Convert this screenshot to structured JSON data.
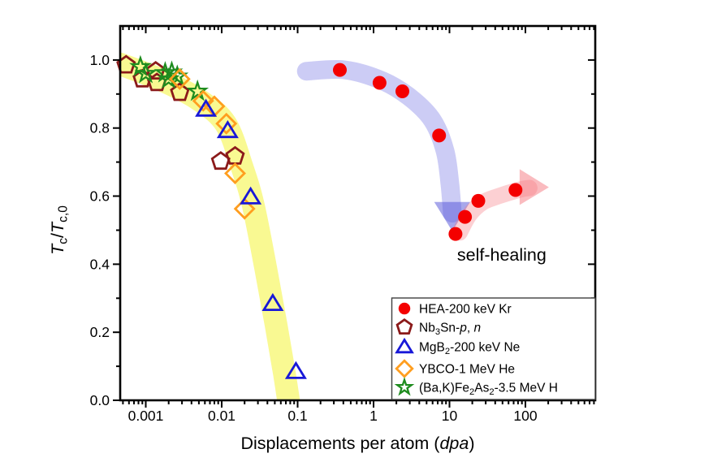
{
  "figure": {
    "background": "#ffffff",
    "annotation": {
      "text": "self-healing",
      "x_dpa": 12.6,
      "y_ratio": 0.41
    }
  },
  "chart_data": {
    "type": "scatter",
    "x_scale": "log",
    "xlim": [
      0.00046,
      832
    ],
    "ylim": [
      0,
      1.1
    ],
    "grid": false,
    "xlabel": "Displacements per atom (dpa)",
    "ylabel": "Tc/Tc,0",
    "xlabel_segments": [
      {
        "t": "Displacements per atom ("
      },
      {
        "t": "dpa",
        "italic": true
      },
      {
        "t": ")"
      }
    ],
    "ylabel_segments": [
      {
        "t": "T",
        "italic": true
      },
      {
        "t": "c",
        "sub": true
      },
      {
        "t": "/"
      },
      {
        "t": "T",
        "italic": true
      },
      {
        "t": "c,0",
        "sub": true
      }
    ],
    "x_ticks": {
      "values": [
        0.001,
        0.01,
        0.1,
        1,
        10,
        100
      ],
      "labels": [
        "0.001",
        "0.01",
        "0.1",
        "1",
        "10",
        "100"
      ]
    },
    "y_ticks": {
      "values": [
        0.0,
        0.2,
        0.4,
        0.6,
        0.8,
        1.0
      ],
      "labels": [
        "0.0",
        "0.2",
        "0.4",
        "0.6",
        "0.8",
        "1.0"
      ]
    },
    "y_minor_step": 0.1,
    "legend_position": "bottom-right",
    "series": [
      {
        "name": "HEA-200 keV Kr",
        "marker": "circle",
        "filled": true,
        "color": "#F40000",
        "label_segments": [
          {
            "t": "HEA-200 keV Kr"
          }
        ],
        "points": [
          [
            0.36,
            0.971
          ],
          [
            1.2,
            0.933
          ],
          [
            2.4,
            0.908
          ],
          [
            7.3,
            0.778
          ],
          [
            12,
            0.489
          ],
          [
            16,
            0.539
          ],
          [
            24,
            0.586
          ],
          [
            74,
            0.618
          ]
        ]
      },
      {
        "name": "Nb3Sn-p, n",
        "marker": "pentagon",
        "filled": false,
        "color": "#8B1A1A",
        "label_segments": [
          {
            "t": "Nb"
          },
          {
            "t": "3",
            "sub": true
          },
          {
            "t": "Sn-"
          },
          {
            "t": "p",
            "italic": true
          },
          {
            "t": ", "
          },
          {
            "t": "n",
            "italic": true
          }
        ],
        "points": [
          [
            0.00055,
            0.985
          ],
          [
            0.0009,
            0.944
          ],
          [
            0.00135,
            0.967
          ],
          [
            0.0014,
            0.933
          ],
          [
            0.0028,
            0.904
          ],
          [
            0.0097,
            0.702
          ],
          [
            0.015,
            0.717
          ]
        ]
      },
      {
        "name": "MgB2-200 keV Ne",
        "marker": "triangle",
        "filled": false,
        "color": "#1818D8",
        "label_segments": [
          {
            "t": "MgB"
          },
          {
            "t": "2",
            "sub": true
          },
          {
            "t": "-200 keV Ne"
          }
        ],
        "points": [
          [
            0.0062,
            0.856
          ],
          [
            0.012,
            0.793
          ],
          [
            0.024,
            0.598
          ],
          [
            0.047,
            0.285
          ],
          [
            0.095,
            0.085
          ]
        ]
      },
      {
        "name": "YBCO-1 MeV He",
        "marker": "diamond",
        "filled": false,
        "color": "#FF9E1F",
        "label_segments": [
          {
            "t": "YBCO-1 MeV He"
          }
        ],
        "points": [
          [
            0.0028,
            0.944
          ],
          [
            0.0057,
            0.88
          ],
          [
            0.008,
            0.864
          ],
          [
            0.0115,
            0.813
          ],
          [
            0.015,
            0.667
          ],
          [
            0.02,
            0.563
          ]
        ]
      },
      {
        "name": "(Ba,K)Fe2As2-3.5 MeV H",
        "marker": "star",
        "filled": false,
        "color": "#1F8C1F",
        "label_segments": [
          {
            "t": "(Ba,K)Fe"
          },
          {
            "t": "2",
            "sub": true
          },
          {
            "t": "As"
          },
          {
            "t": "2",
            "sub": true
          },
          {
            "t": "-3.5 MeV H"
          }
        ],
        "points": [
          [
            0.00085,
            0.98
          ],
          [
            0.001,
            0.96
          ],
          [
            0.0018,
            0.962
          ],
          [
            0.002,
            0.944
          ],
          [
            0.0022,
            0.964
          ],
          [
            0.0026,
            0.952
          ],
          [
            0.0048,
            0.908
          ]
        ]
      }
    ],
    "bands": [
      {
        "name": "yellow-trend-band",
        "color": "#F9F98C",
        "opacity": 0.95,
        "width": 28,
        "points": [
          [
            0.00046,
            0.988
          ],
          [
            0.00166,
            0.94
          ],
          [
            0.005,
            0.883
          ],
          [
            0.0113,
            0.812
          ],
          [
            0.0185,
            0.686
          ],
          [
            0.026,
            0.574
          ],
          [
            0.038,
            0.388
          ],
          [
            0.052,
            0.221
          ],
          [
            0.067,
            0.079
          ],
          [
            0.081,
            -0.045
          ]
        ],
        "arrow": null
      },
      {
        "name": "blue-trend-band",
        "color": "#6464E1",
        "opacity": 0.33,
        "width": 23,
        "points": [
          [
            0.13,
            0.967
          ],
          [
            0.42,
            0.971
          ],
          [
            1.34,
            0.938
          ],
          [
            3.18,
            0.886
          ],
          [
            6.04,
            0.821
          ],
          [
            8.73,
            0.733
          ],
          [
            10.1,
            0.638
          ],
          [
            10.9,
            0.55
          ]
        ],
        "arrow": {
          "color": "#5050D8",
          "opacity": 0.5,
          "points": [
            [
              6.3,
              0.583
            ],
            [
              18.7,
              0.583
            ],
            [
              10.9,
              0.497
            ]
          ]
        }
      },
      {
        "name": "pink-trend-band",
        "color": "#F57880",
        "opacity": 0.35,
        "width": 20,
        "points": [
          [
            13.6,
            0.493
          ],
          [
            18.3,
            0.545
          ],
          [
            27.1,
            0.581
          ],
          [
            44.4,
            0.6
          ],
          [
            84,
            0.619
          ],
          [
            113,
            0.624
          ]
        ],
        "arrow": {
          "color": "#F57880",
          "opacity": 0.5,
          "points": [
            [
              84,
              0.679
            ],
            [
              84,
              0.574
            ],
            [
              204,
              0.626
            ]
          ]
        }
      }
    ]
  }
}
